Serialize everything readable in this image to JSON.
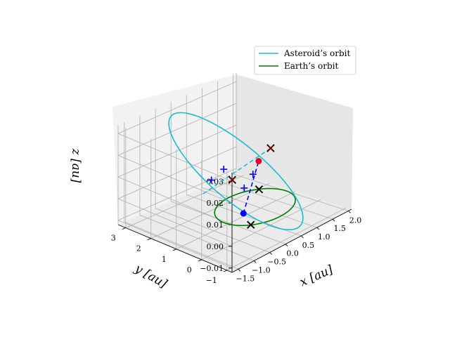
{
  "chart_data": {
    "type": "line3d",
    "title": "",
    "xlabel": "$x$ [au]",
    "ylabel": "$y$ [au]",
    "zlabel": "$z$ [au]",
    "xlabel_text": "x [au]",
    "ylabel_text": "y [au]",
    "zlabel_text": "z [au]",
    "xlim": [
      -1.7,
      2.1
    ],
    "ylim": [
      -1.2,
      3.3
    ],
    "zlim": [
      -0.012,
      0.034
    ],
    "xticks": [
      -1.5,
      -1.0,
      -0.5,
      0.0,
      0.5,
      1.0,
      1.5,
      2.0
    ],
    "xtick_labels": [
      "−1.5",
      "−1.0",
      "−0.5",
      "0.0",
      "0.5",
      "1.0",
      "1.5",
      "2.0"
    ],
    "yticks": [
      -1,
      0,
      1,
      2,
      3
    ],
    "ytick_labels": [
      "−1",
      "0",
      "1",
      "2",
      "3"
    ],
    "zticks": [
      -0.01,
      0.0,
      0.01,
      0.02,
      0.03
    ],
    "ztick_labels": [
      "−0.01",
      "0.00",
      "0.01",
      "0.02",
      "0.03"
    ],
    "grid": true,
    "legend_position": "top-right",
    "series": [
      {
        "name": "Asteroid’s orbit",
        "color": "#17becf",
        "style": "solid",
        "kind": "ellipse",
        "center": [
          0.2,
          1.0,
          0.0105
        ],
        "semi_major": 1.2,
        "eccentricity": 0.5,
        "inclination_dir": "z"
      },
      {
        "name": "Earth’s orbit",
        "color": "#008000",
        "style": "solid",
        "kind": "circle",
        "center": [
          0,
          0,
          0
        ],
        "radius": 1.0
      }
    ],
    "annotations": {
      "line_of_apsides": {
        "color": "#0000ff",
        "style": "dashed",
        "from": [
          -0.4,
          -0.04,
          0.0
        ],
        "to": [
          1.8,
          2.06,
          0.0
        ]
      },
      "line_of_nodes": {
        "color": "#17becf",
        "style": "dashed",
        "from": [
          -0.1,
          -0.74,
          0.031
        ],
        "to": [
          0.5,
          2.74,
          -0.01
        ]
      },
      "markers": [
        {
          "symbol": "o",
          "color": "#0000ff",
          "pos": [
            -0.4,
            -0.04,
            0.0
          ]
        },
        {
          "symbol": "o",
          "color": "#e8001c",
          "pos": [
            1.8,
            2.06,
            0.0
          ]
        },
        {
          "symbol": "x",
          "color": "#000000",
          "pos": [
            -0.1,
            -0.74,
            0.031
          ]
        },
        {
          "symbol": "x",
          "color": "#8b0000",
          "pos": [
            -0.1,
            -0.74,
            0.031
          ]
        },
        {
          "symbol": "x",
          "color": "#000000",
          "pos": [
            0.7,
            0.7,
            0.0
          ]
        },
        {
          "symbol": "x",
          "color": "#000000",
          "pos": [
            0.7,
            1.75,
            0.0
          ]
        },
        {
          "symbol": "x",
          "color": "#8b0000",
          "pos": [
            0.7,
            1.75,
            0.0
          ]
        },
        {
          "symbol": "x",
          "color": "#000000",
          "pos": [
            -0.7,
            -0.7,
            0.0
          ]
        },
        {
          "symbol": "+",
          "color": "#0000ff",
          "pos": [
            0.55,
            1.1,
            0.0
          ]
        },
        {
          "symbol": "+",
          "color": "#0000ff",
          "pos": [
            1.2,
            1.55,
            0.0
          ]
        },
        {
          "symbol": "+",
          "color": "#0000ff",
          "pos": [
            0.4,
            2.2,
            0.0
          ]
        },
        {
          "symbol": "+",
          "color": "#0000ff",
          "pos": [
            1.0,
            2.45,
            0.0
          ]
        }
      ]
    }
  }
}
